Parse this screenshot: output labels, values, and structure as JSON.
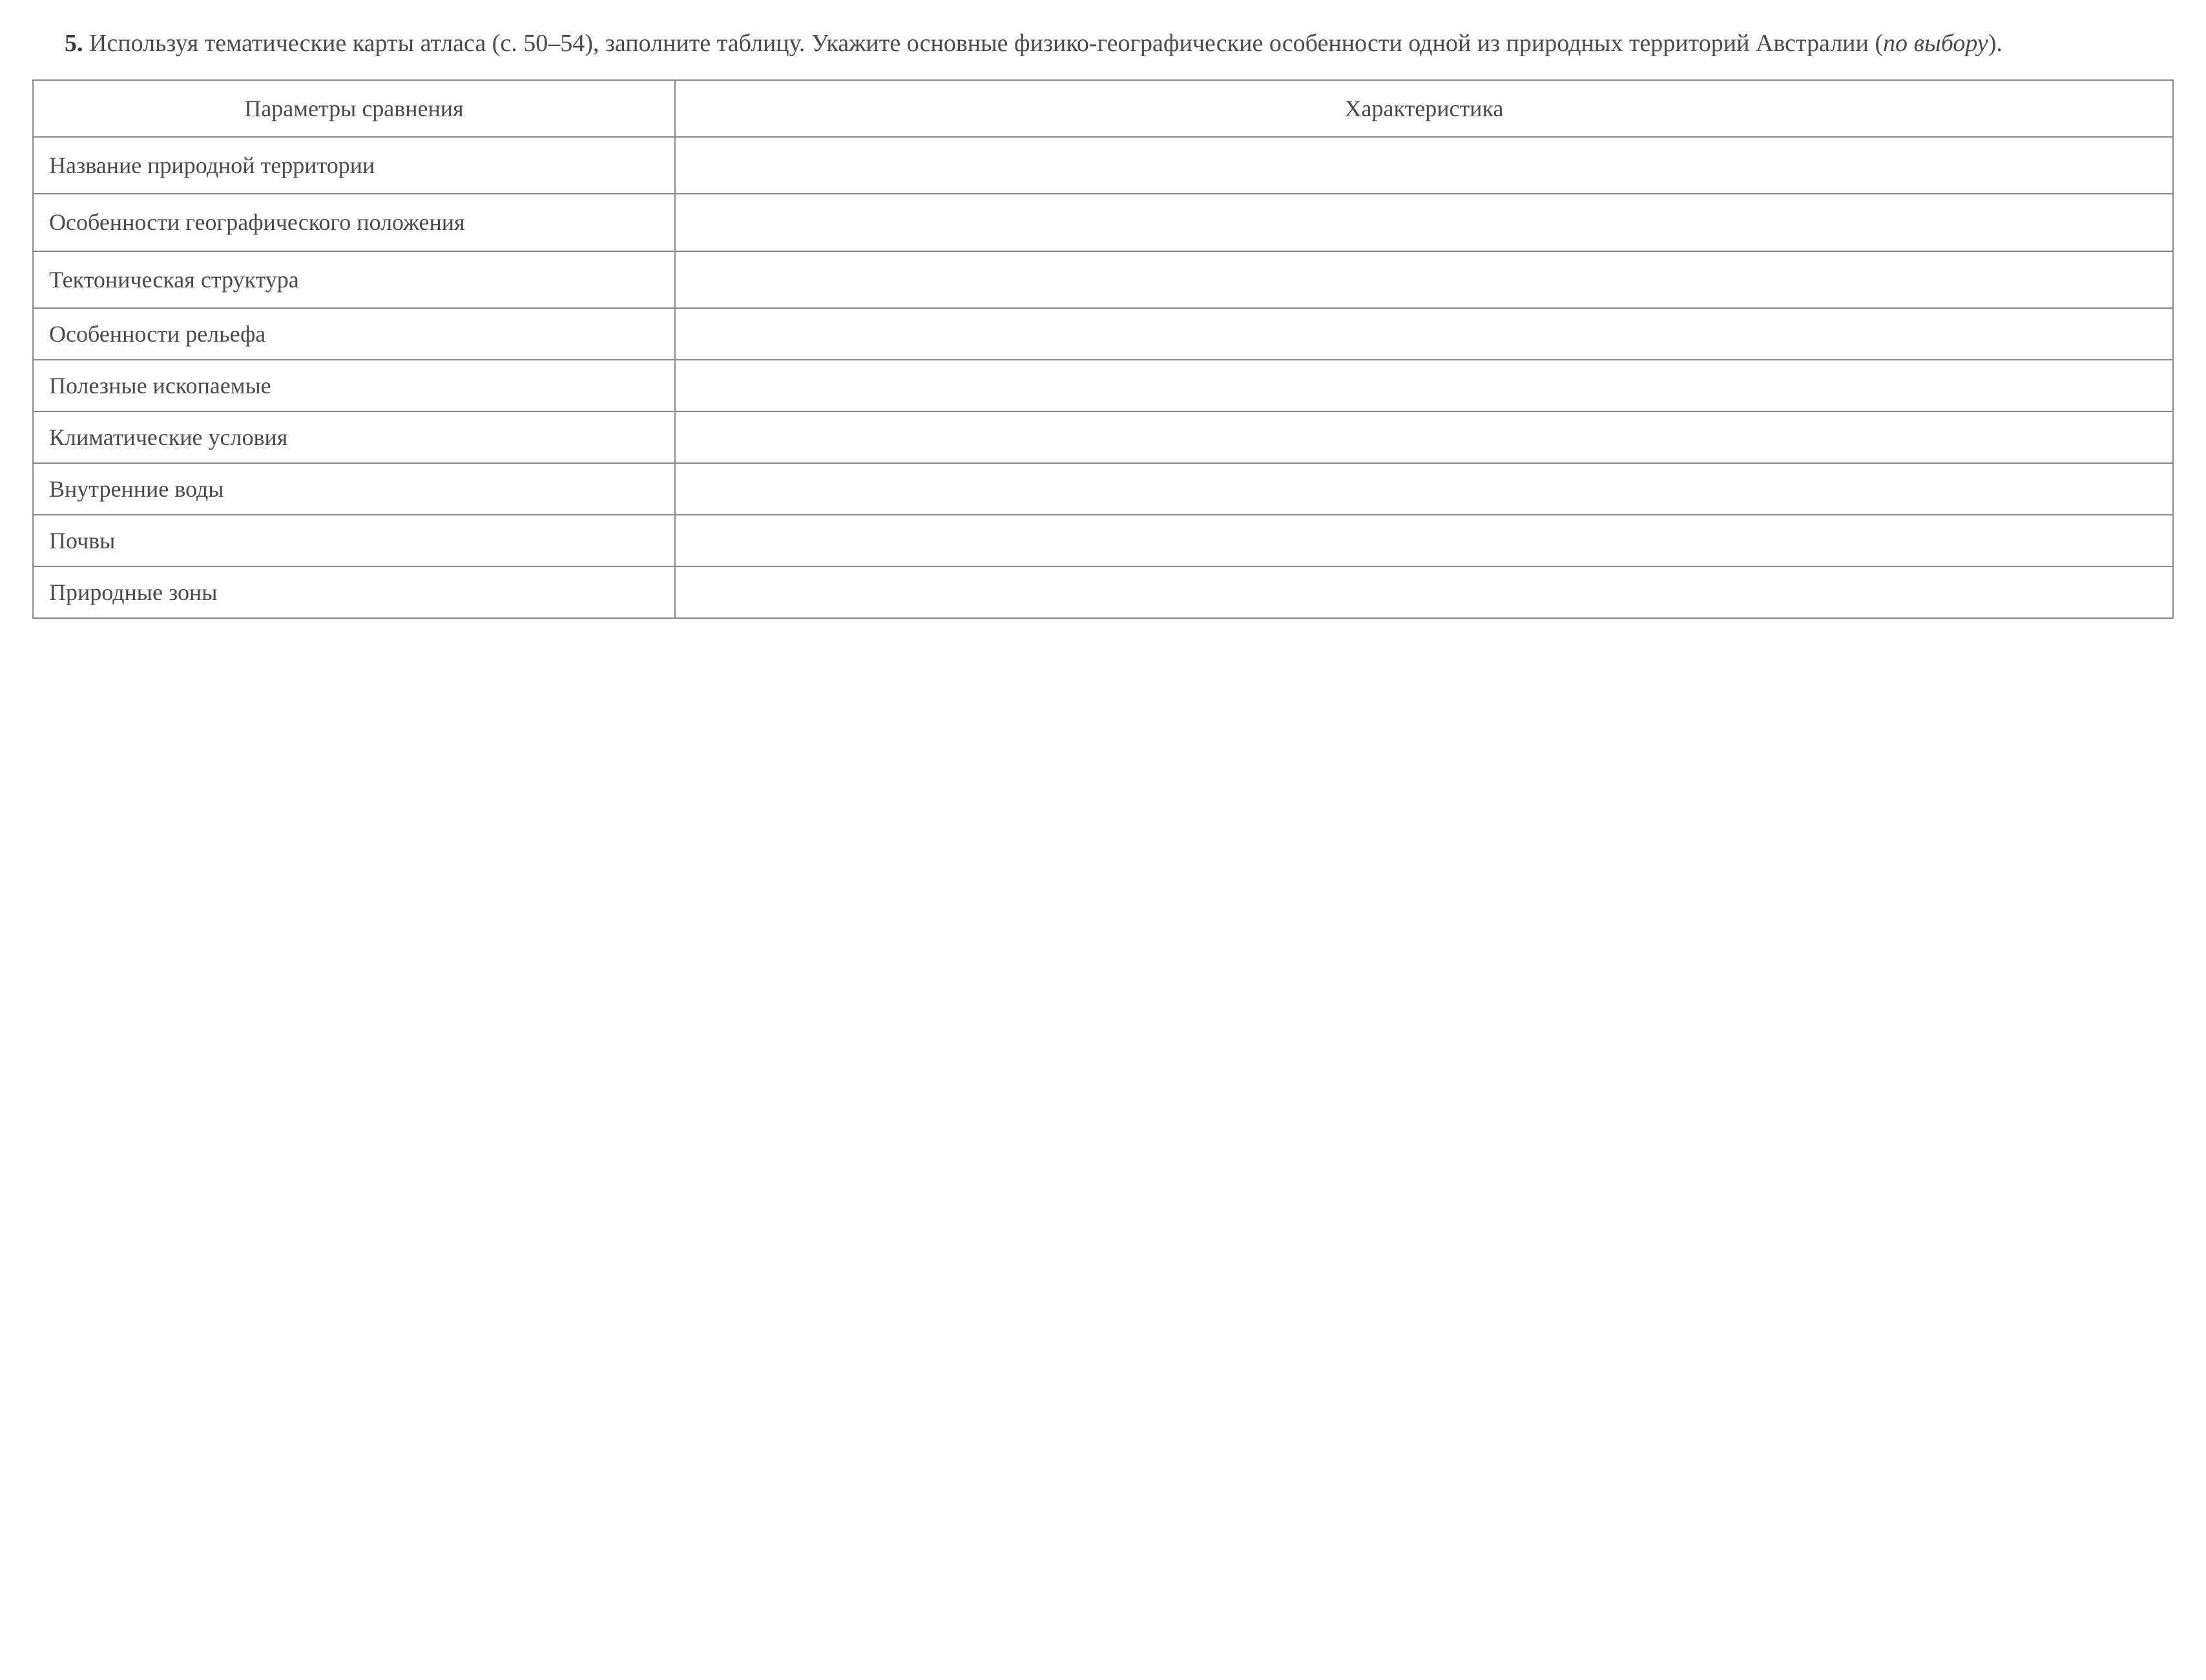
{
  "instruction": {
    "number": "5.",
    "text_part1": "Используя тематические карты атласа (с. 50–54), заполните таблицу. Укажите основные физико-географические особенности одной из природных территорий Австралии (",
    "italic": "по выбору",
    "text_part2": ")."
  },
  "table": {
    "headers": {
      "params": "Параметры сравнения",
      "char": "Характеристика"
    },
    "rows": [
      {
        "param": "Название природной территории",
        "value": "",
        "twoLine": true
      },
      {
        "param": "Особенности географического положения",
        "value": "",
        "twoLine": true,
        "justify": true
      },
      {
        "param": "Тектоническая структура",
        "value": "",
        "twoLine": true
      },
      {
        "param": "Особенности рельефа",
        "value": ""
      },
      {
        "param": "Полезные ископаемые",
        "value": ""
      },
      {
        "param": "Климатические условия",
        "value": ""
      },
      {
        "param": "Внутренние воды",
        "value": ""
      },
      {
        "param": "Почвы",
        "value": ""
      },
      {
        "param": "Природные зоны",
        "value": ""
      }
    ]
  },
  "styling": {
    "background_color": "#ffffff",
    "text_color": "#4a4a4a",
    "border_color": "#8a8a8a",
    "font_family": "Georgia, Times New Roman, serif",
    "instruction_fontsize": 38,
    "table_fontsize": 36,
    "param_col_width_pct": 30,
    "char_col_width_pct": 70,
    "border_width": 2,
    "cell_padding_v": 18,
    "cell_padding_h": 24
  }
}
